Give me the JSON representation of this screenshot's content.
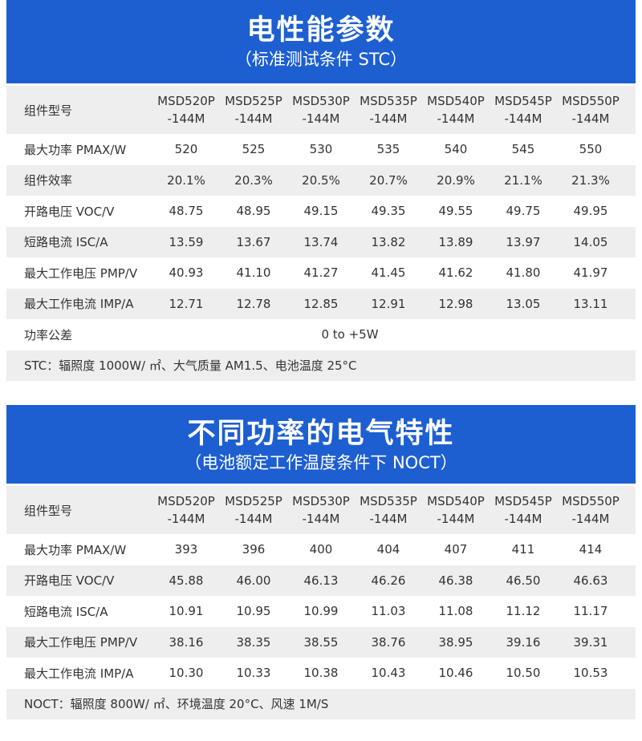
{
  "section1": {
    "title": "电性能参数",
    "subtitle": "（标准测试条件 STC）",
    "model_label": "组件型号",
    "models": [
      "MSD520P\n-144M",
      "MSD525P\n-144M",
      "MSD530P\n-144M",
      "MSD535P\n-144M",
      "MSD540P\n-144M",
      "MSD545P\n-144M",
      "MSD550P\n-144M"
    ],
    "rows": [
      {
        "label": "最大功率 PMAX/W",
        "values": [
          "520",
          "525",
          "530",
          "535",
          "540",
          "545",
          "550"
        ]
      },
      {
        "label": "组件效率",
        "values": [
          "20.1%",
          "20.3%",
          "20.5%",
          "20.7%",
          "20.9%",
          "21.1%",
          "21.3%"
        ]
      },
      {
        "label": "开路电压 VOC/V",
        "values": [
          "48.75",
          "48.95",
          "49.15",
          "49.35",
          "49.55",
          "49.75",
          "49.95"
        ]
      },
      {
        "label": "短路电流 ISC/A",
        "values": [
          "13.59",
          "13.67",
          "13.74",
          "13.82",
          "13.89",
          "13.97",
          "14.05"
        ]
      },
      {
        "label": "最大工作电压 PMP/V",
        "values": [
          "40.93",
          "41.10",
          "41.27",
          "41.45",
          "41.62",
          "41.80",
          "41.97"
        ]
      },
      {
        "label": "最大工作电流 IMP/A",
        "values": [
          "12.71",
          "12.78",
          "12.85",
          "12.91",
          "12.98",
          "13.05",
          "13.11"
        ]
      }
    ],
    "tolerance_label": "功率公差",
    "tolerance_value": "0 to +5W",
    "note": "STC：辐照度 1000W/ ㎡、大气质量 AM1.5、电池温度 25°C"
  },
  "section2": {
    "title": "不同功率的电气特性",
    "subtitle": "（电池额定工作温度条件下 NOCT）",
    "model_label": "组件型号",
    "models": [
      "MSD520P\n-144M",
      "MSD525P\n-144M",
      "MSD530P\n-144M",
      "MSD535P\n-144M",
      "MSD540P\n-144M",
      "MSD545P\n-144M",
      "MSD550P\n-144M"
    ],
    "rows": [
      {
        "label": "最大功率 PMAX/W",
        "values": [
          "393",
          "396",
          "400",
          "404",
          "407",
          "411",
          "414"
        ]
      },
      {
        "label": "开路电压 VOC/V",
        "values": [
          "45.88",
          "46.00",
          "46.13",
          "46.26",
          "46.38",
          "46.50",
          "46.63"
        ]
      },
      {
        "label": "短路电流 ISC/A",
        "values": [
          "10.91",
          "10.95",
          "10.99",
          "11.03",
          "11.08",
          "11.12",
          "11.17"
        ]
      },
      {
        "label": "最大工作电压 PMP/V",
        "values": [
          "38.16",
          "38.35",
          "38.55",
          "38.76",
          "38.95",
          "39.16",
          "39.31"
        ]
      },
      {
        "label": "最大工作电流 IMP/A",
        "values": [
          "10.30",
          "10.33",
          "10.38",
          "10.43",
          "10.46",
          "10.50",
          "10.53"
        ]
      }
    ],
    "note": "NOCT：辐照度 800W/ ㎡、环境温度 20°C、风速 1M/S"
  },
  "colors": {
    "banner": "#1d5fd1",
    "row_alt": "#eeeeee"
  }
}
